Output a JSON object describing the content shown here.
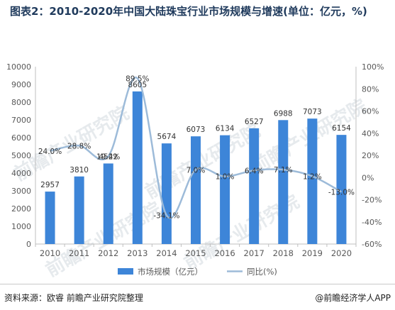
{
  "header": {
    "title": "图表2：2010-2020年中国大陆珠宝行业市场规模与增速(单位：亿元，%)"
  },
  "footer": {
    "source": "资料来源：欧睿 前瞻产业研究院整理",
    "credit": "@前瞻经济学人APP"
  },
  "watermark": "前瞻产业研究院",
  "colors": {
    "bar": "#3d85d8",
    "line": "#9dbbd9",
    "axis_text": "#595959",
    "grid_axis": "#bfbfbf",
    "watermark": "#d2d8df"
  },
  "chart_data": {
    "type": "bar",
    "categories": [
      "2010",
      "2011",
      "2012",
      "2013",
      "2014",
      "2015",
      "2016",
      "2017",
      "2018",
      "2019",
      "2020"
    ],
    "series": [
      {
        "name": "市场规模（亿元）",
        "type": "bar",
        "axis": "left",
        "values": [
          2957,
          3810,
          4542,
          8605,
          5674,
          6073,
          6134,
          6527,
          6988,
          7073,
          6154
        ],
        "labels": [
          "2957",
          "3810",
          "4542",
          "8605",
          "5674",
          "6073",
          "6134",
          "6527",
          "6988",
          "7073",
          "6154"
        ]
      },
      {
        "name": "同比(%)",
        "type": "line",
        "smooth": true,
        "axis": "right",
        "values": [
          24.0,
          28.8,
          19.2,
          89.5,
          -34.1,
          7.0,
          1.0,
          6.4,
          7.1,
          1.2,
          -13.0
        ],
        "labels": [
          "24.0%",
          "28.8%",
          "19.2%",
          "89.5%",
          "-34.1%",
          "7.0%",
          "1.0%",
          "6.4%",
          "7.1%",
          "1.2%",
          "-13.0%"
        ]
      }
    ],
    "y_left": {
      "min": 0,
      "max": 10000,
      "step": 1000,
      "ticks": [
        "0",
        "1000",
        "2000",
        "3000",
        "4000",
        "5000",
        "6000",
        "7000",
        "8000",
        "9000",
        "10000"
      ]
    },
    "y_right": {
      "min": -60,
      "max": 100,
      "step": 20,
      "ticks": [
        "-60%",
        "-40%",
        "-20%",
        "0%",
        "20%",
        "40%",
        "60%",
        "80%",
        "100%"
      ]
    },
    "grid": false,
    "legend_position": "bottom"
  }
}
